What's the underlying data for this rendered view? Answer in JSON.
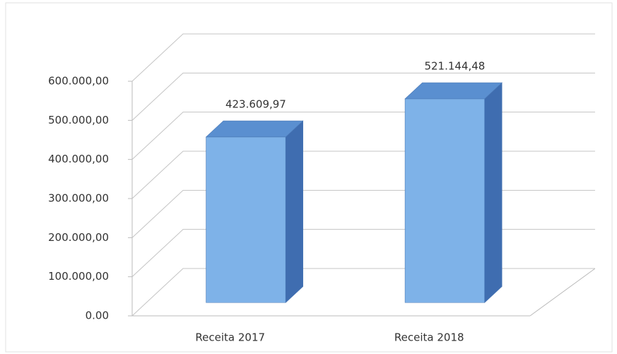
{
  "chart_data": {
    "type": "bar3d",
    "categories": [
      "Receita 2017",
      "Receita 2018"
    ],
    "values": [
      423609.97,
      521144.48
    ],
    "value_labels": [
      "423.609,97",
      "521.144,48"
    ],
    "color": "#7eb2e8",
    "ylim": [
      0,
      600000
    ],
    "yticks": [
      {
        "value": 0,
        "label": "0.00"
      },
      {
        "value": 100000,
        "label": "100.000,00"
      },
      {
        "value": 200000,
        "label": "200.000,00"
      },
      {
        "value": 300000,
        "label": "300.000,00"
      },
      {
        "value": 400000,
        "label": "400.000,00"
      },
      {
        "value": 500000,
        "label": "500.000,00"
      },
      {
        "value": 600000,
        "label": "600.000,00"
      }
    ],
    "grid": true
  }
}
